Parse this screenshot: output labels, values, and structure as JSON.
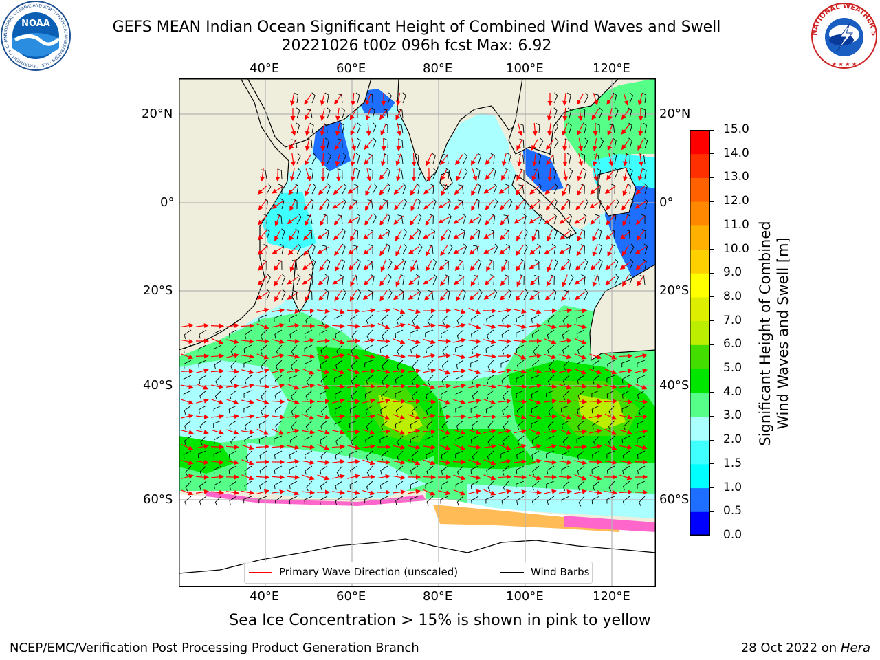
{
  "title": {
    "line1": "GEFS MEAN Indian Ocean Significant Height of Combined Wind Waves and Swell",
    "line2": "20221026 t00z 096h fcst   Max: 6.92"
  },
  "logos": {
    "noaa": {
      "text": "NOAA",
      "ring_text": "NATIONAL OCEANIC AND ATMOSPHERIC ADMINISTRATION · U.S. DEPARTMENT OF COMMERCE"
    },
    "nws": {
      "ring_text": "NATIONAL WEATHER SERVICE"
    }
  },
  "map": {
    "lon_ticks_top": [
      "40°E",
      "60°E",
      "80°E",
      "100°E",
      "120°E"
    ],
    "lon_ticks_bottom": [
      "40°E",
      "60°E",
      "80°E",
      "100°E",
      "120°E"
    ],
    "lat_ticks_left": [
      "20°N",
      "0°",
      "20°S",
      "40°S",
      "60°S"
    ],
    "lat_ticks_right": [
      "20°N",
      "0°",
      "20°S",
      "40°S",
      "60°S"
    ],
    "colors": {
      "land": "#efeedc",
      "ice": "#ffffff",
      "grid": "#b4b4b4",
      "wave_arrow": "#ff0000",
      "wind_barb": "#000000"
    }
  },
  "legend": {
    "wave_label": "Primary Wave Direction (unscaled)",
    "wave_color": "#ff0000",
    "wind_label": "Wind Barbs",
    "wind_color": "#000000"
  },
  "colorbar": {
    "label_line1": "Significant Height of Combined",
    "label_line2": "Wind Waves and Swell [m]",
    "ticks": [
      "0.0",
      "0.5",
      "1.0",
      "1.5",
      "2.0",
      "3.0",
      "4.0",
      "5.0",
      "6.0",
      "7.0",
      "8.0",
      "9.0",
      "10.0",
      "11.0",
      "12.0",
      "13.0",
      "14.0",
      "15.0"
    ],
    "colors": [
      "#0000ff",
      "#1e6fff",
      "#00ffff",
      "#40ffff",
      "#aaffff",
      "#55ff88",
      "#00e600",
      "#44dd00",
      "#bbee00",
      "#ddee00",
      "#ffff00",
      "#ffd000",
      "#ffb000",
      "#ff8800",
      "#ff6000",
      "#ff3000",
      "#ff0000"
    ]
  },
  "note": "Sea Ice Concentration > 15% is shown in pink to yellow",
  "credit": "NCEP/EMC/Verification Post Processing Product Generation Branch",
  "stamp": {
    "date": "28 Oct 2022 on ",
    "host": "Hera"
  }
}
